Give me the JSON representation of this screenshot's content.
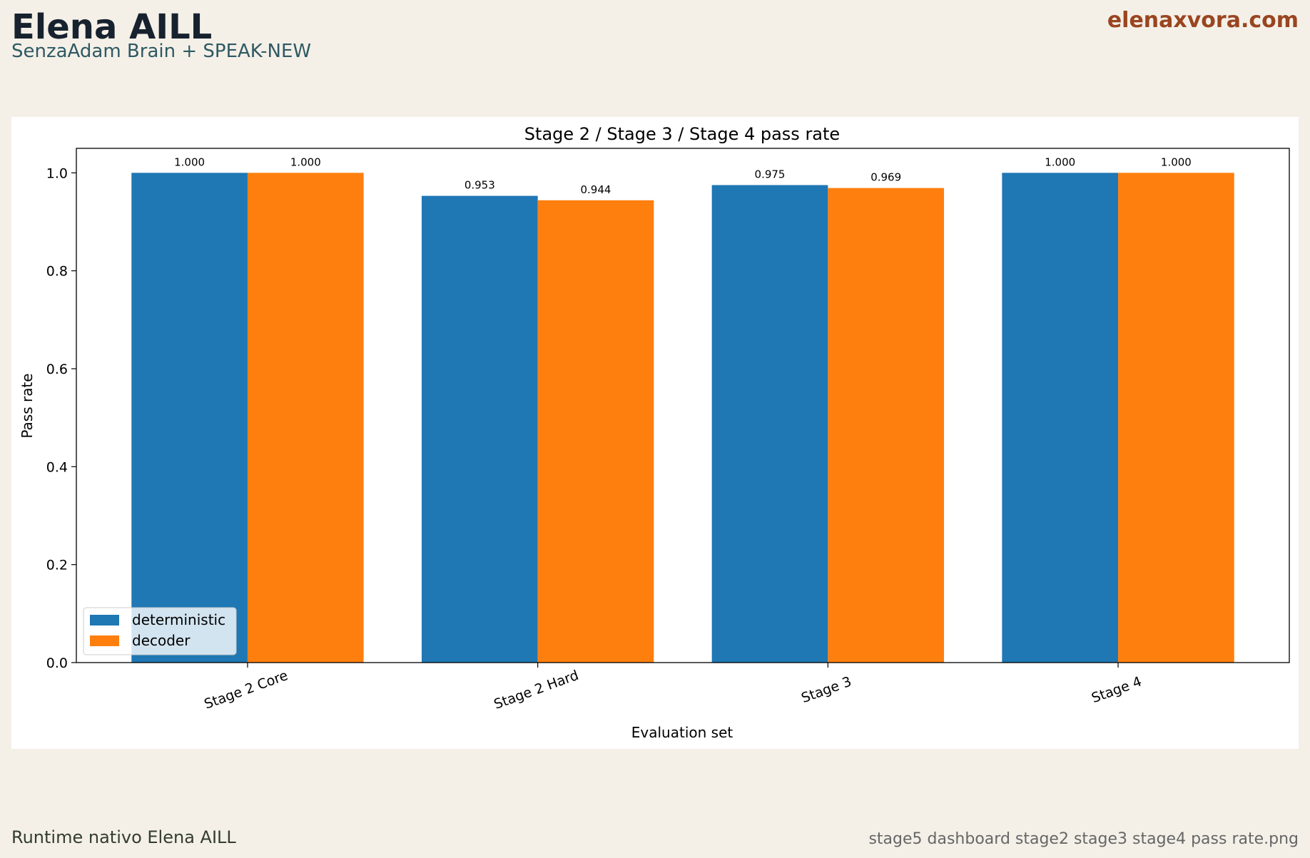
{
  "header": {
    "title": "Elena AILL",
    "subtitle": "SenzaAdam Brain + SPEAK-NEW",
    "site": "elenaxvora.com"
  },
  "chart_data": {
    "type": "bar",
    "title": "Stage 2 / Stage 3 / Stage 4 pass rate",
    "x_label": "Evaluation set",
    "y_label": "Pass rate",
    "categories": [
      "Stage 2 Core",
      "Stage 2 Hard",
      "Stage 3",
      "Stage 4"
    ],
    "series": [
      {
        "name": "deterministic",
        "color": "#1f77b4",
        "values": [
          1.0,
          0.953,
          0.975,
          1.0
        ],
        "value_labels": [
          "1.000",
          "0.953",
          "0.975",
          "1.000"
        ]
      },
      {
        "name": "decoder",
        "color": "#ff7f0e",
        "values": [
          1.0,
          0.944,
          0.969,
          1.0
        ],
        "value_labels": [
          "1.000",
          "0.944",
          "0.969",
          "1.000"
        ]
      }
    ],
    "ylim": [
      0,
      1.05
    ],
    "yticks": [
      {
        "value": 0,
        "label": "0.0"
      },
      0.2,
      0.4,
      0.6,
      0.8,
      {
        "value": 1,
        "label": "1.0"
      }
    ],
    "legend": "lower left"
  },
  "footer": {
    "left": "Runtime nativo Elena AILL",
    "right": "stage5 dashboard stage2 stage3 stage4 pass rate.png"
  }
}
